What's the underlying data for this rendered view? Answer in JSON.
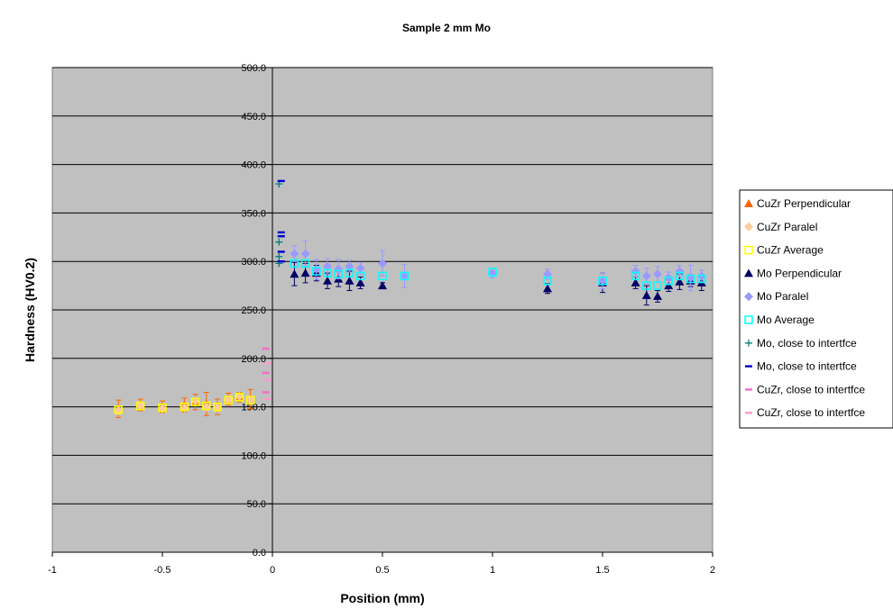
{
  "chart_data": {
    "type": "scatter",
    "title": "Sample 2 mm Mo",
    "xlabel": "Position (mm)",
    "ylabel": "Hardness (HV0.2)",
    "xlim": [
      -1,
      2
    ],
    "ylim": [
      0,
      500
    ],
    "x_ticks": [
      "-1",
      "-0.5",
      "0",
      "0.5",
      "1",
      "1.5",
      "2"
    ],
    "y_ticks": [
      "0.0",
      "50.0",
      "100.0",
      "150.0",
      "200.0",
      "250.0",
      "300.0",
      "350.0",
      "400.0",
      "450.0",
      "500.0"
    ],
    "grid": true,
    "legend_position": "right",
    "plot_background": "#c0c0c0",
    "series": [
      {
        "name": "CuZr Perpendicular",
        "marker": "triangle",
        "color": "#ff6600",
        "error_color": "#ff6600",
        "points": [
          {
            "x": -0.7,
            "y": 148,
            "err": 9
          },
          {
            "x": -0.6,
            "y": 152,
            "err": 6
          },
          {
            "x": -0.5,
            "y": 150,
            "err": 6
          },
          {
            "x": -0.4,
            "y": 152,
            "err": 7
          },
          {
            "x": -0.35,
            "y": 155,
            "err": 8
          },
          {
            "x": -0.3,
            "y": 153,
            "err": 12
          },
          {
            "x": -0.25,
            "y": 150,
            "err": 8
          },
          {
            "x": -0.2,
            "y": 158,
            "err": 6
          },
          {
            "x": -0.15,
            "y": 160,
            "err": 5
          },
          {
            "x": -0.1,
            "y": 158,
            "err": 10
          }
        ]
      },
      {
        "name": "CuZr Paralel",
        "marker": "diamond",
        "color": "#ffcc99",
        "error_color": "#ffcc99",
        "points": [
          {
            "x": -0.7,
            "y": 146,
            "err": 0
          },
          {
            "x": -0.6,
            "y": 151,
            "err": 0
          },
          {
            "x": -0.5,
            "y": 148,
            "err": 0
          },
          {
            "x": -0.4,
            "y": 149,
            "err": 0
          },
          {
            "x": -0.35,
            "y": 156,
            "err": 0
          },
          {
            "x": -0.3,
            "y": 150,
            "err": 0
          },
          {
            "x": -0.25,
            "y": 149,
            "err": 0
          },
          {
            "x": -0.2,
            "y": 157,
            "err": 0
          },
          {
            "x": -0.15,
            "y": 161,
            "err": 0
          },
          {
            "x": -0.1,
            "y": 157,
            "err": 0
          }
        ]
      },
      {
        "name": "CuZr Average",
        "marker": "square",
        "color": "#ffff00",
        "error_color": "#ffff00",
        "points": [
          {
            "x": -0.7,
            "y": 147,
            "err": 0
          },
          {
            "x": -0.6,
            "y": 151,
            "err": 0
          },
          {
            "x": -0.5,
            "y": 149,
            "err": 0
          },
          {
            "x": -0.4,
            "y": 150,
            "err": 0
          },
          {
            "x": -0.35,
            "y": 155,
            "err": 0
          },
          {
            "x": -0.3,
            "y": 151,
            "err": 0
          },
          {
            "x": -0.25,
            "y": 150,
            "err": 0
          },
          {
            "x": -0.2,
            "y": 157,
            "err": 0
          },
          {
            "x": -0.15,
            "y": 160,
            "err": 0
          },
          {
            "x": -0.1,
            "y": 157,
            "err": 0
          }
        ]
      },
      {
        "name": "Mo Perpendicular",
        "marker": "triangle",
        "color": "#000066",
        "error_color": "#000066",
        "points": [
          {
            "x": 0.1,
            "y": 287,
            "err": 12
          },
          {
            "x": 0.15,
            "y": 288,
            "err": 10
          },
          {
            "x": 0.2,
            "y": 288,
            "err": 8
          },
          {
            "x": 0.25,
            "y": 280,
            "err": 8
          },
          {
            "x": 0.3,
            "y": 282,
            "err": 8
          },
          {
            "x": 0.35,
            "y": 280,
            "err": 10
          },
          {
            "x": 0.4,
            "y": 278,
            "err": 6
          },
          {
            "x": 0.5,
            "y": 275,
            "err": 3
          },
          {
            "x": 1.25,
            "y": 272,
            "err": 5
          },
          {
            "x": 1.5,
            "y": 278,
            "err": 10
          },
          {
            "x": 1.65,
            "y": 278,
            "err": 6
          },
          {
            "x": 1.7,
            "y": 265,
            "err": 10
          },
          {
            "x": 1.75,
            "y": 264,
            "err": 6
          },
          {
            "x": 1.8,
            "y": 275,
            "err": 6
          },
          {
            "x": 1.85,
            "y": 279,
            "err": 8
          },
          {
            "x": 1.9,
            "y": 280,
            "err": 6
          },
          {
            "x": 1.95,
            "y": 278,
            "err": 8
          }
        ]
      },
      {
        "name": "Mo Paralel",
        "marker": "diamond",
        "color": "#9999ff",
        "error_color": "#9999ff",
        "points": [
          {
            "x": 0.1,
            "y": 308,
            "err": 8
          },
          {
            "x": 0.15,
            "y": 308,
            "err": 13
          },
          {
            "x": 0.2,
            "y": 292,
            "err": 10
          },
          {
            "x": 0.25,
            "y": 295,
            "err": 8
          },
          {
            "x": 0.3,
            "y": 292,
            "err": 10
          },
          {
            "x": 0.35,
            "y": 295,
            "err": 6
          },
          {
            "x": 0.4,
            "y": 293,
            "err": 6
          },
          {
            "x": 0.5,
            "y": 298,
            "err": 13
          },
          {
            "x": 0.6,
            "y": 285,
            "err": 12
          },
          {
            "x": 1.0,
            "y": 288,
            "err": 5
          },
          {
            "x": 1.25,
            "y": 287,
            "err": 5
          },
          {
            "x": 1.5,
            "y": 280,
            "err": 8
          },
          {
            "x": 1.65,
            "y": 290,
            "err": 6
          },
          {
            "x": 1.7,
            "y": 285,
            "err": 8
          },
          {
            "x": 1.75,
            "y": 287,
            "err": 8
          },
          {
            "x": 1.8,
            "y": 283,
            "err": 6
          },
          {
            "x": 1.85,
            "y": 290,
            "err": 6
          },
          {
            "x": 1.9,
            "y": 283,
            "err": 13
          },
          {
            "x": 1.95,
            "y": 285,
            "err": 6
          }
        ]
      },
      {
        "name": "Mo Average",
        "marker": "square",
        "color": "#00ffff",
        "error_color": "#00ffff",
        "points": [
          {
            "x": 0.1,
            "y": 298,
            "err": 0
          },
          {
            "x": 0.15,
            "y": 298,
            "err": 0
          },
          {
            "x": 0.2,
            "y": 290,
            "err": 0
          },
          {
            "x": 0.25,
            "y": 288,
            "err": 0
          },
          {
            "x": 0.3,
            "y": 287,
            "err": 0
          },
          {
            "x": 0.35,
            "y": 288,
            "err": 0
          },
          {
            "x": 0.4,
            "y": 285,
            "err": 0
          },
          {
            "x": 0.5,
            "y": 285,
            "err": 0
          },
          {
            "x": 0.6,
            "y": 285,
            "err": 0
          },
          {
            "x": 1.0,
            "y": 289,
            "err": 0
          },
          {
            "x": 1.25,
            "y": 280,
            "err": 0
          },
          {
            "x": 1.5,
            "y": 280,
            "err": 0
          },
          {
            "x": 1.65,
            "y": 285,
            "err": 0
          },
          {
            "x": 1.7,
            "y": 275,
            "err": 0
          },
          {
            "x": 1.75,
            "y": 275,
            "err": 0
          },
          {
            "x": 1.8,
            "y": 280,
            "err": 0
          },
          {
            "x": 1.85,
            "y": 285,
            "err": 0
          },
          {
            "x": 1.9,
            "y": 282,
            "err": 0
          },
          {
            "x": 1.95,
            "y": 282,
            "err": 0
          }
        ]
      },
      {
        "name": "Mo, close to intertfce",
        "marker": "plus",
        "color": "#008080",
        "error_color": "#008080",
        "points": [
          {
            "x": 0.03,
            "y": 380,
            "err": 0
          },
          {
            "x": 0.03,
            "y": 320,
            "err": 0
          },
          {
            "x": 0.03,
            "y": 305,
            "err": 0
          },
          {
            "x": 0.03,
            "y": 298,
            "err": 0
          }
        ]
      },
      {
        "name": "Mo, close to intertfce",
        "marker": "dash",
        "color": "#0000cc",
        "error_color": "#0000cc",
        "points": [
          {
            "x": 0.04,
            "y": 383,
            "err": 0
          },
          {
            "x": 0.04,
            "y": 330,
            "err": 0
          },
          {
            "x": 0.04,
            "y": 326,
            "err": 0
          },
          {
            "x": 0.04,
            "y": 310,
            "err": 0
          },
          {
            "x": 0.04,
            "y": 300,
            "err": 0
          }
        ]
      },
      {
        "name": "CuZr, close to intertfce",
        "marker": "dash",
        "color": "#ff66cc",
        "error_color": "#ff66cc",
        "points": [
          {
            "x": -0.03,
            "y": 210,
            "err": 0
          },
          {
            "x": -0.03,
            "y": 185,
            "err": 0
          },
          {
            "x": -0.03,
            "y": 165,
            "err": 0
          }
        ]
      },
      {
        "name": "CuZr, close to intertfce",
        "marker": "dash",
        "color": "#ff99cc",
        "error_color": "#ff99cc",
        "points": [
          {
            "x": -0.02,
            "y": 195,
            "err": 0
          },
          {
            "x": -0.02,
            "y": 178,
            "err": 0
          },
          {
            "x": -0.02,
            "y": 158,
            "err": 0
          }
        ]
      }
    ]
  }
}
